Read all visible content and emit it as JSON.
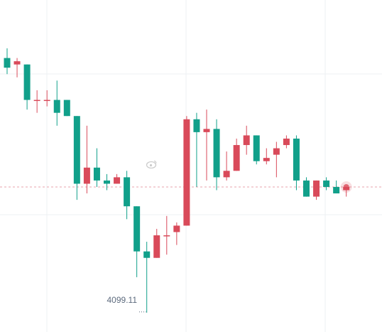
{
  "chart_data": {
    "type": "candlestick",
    "min_label": "4099.11",
    "last_price_marker": true,
    "colors": {
      "up": "#d94a5a",
      "down": "#11a08a",
      "grid": "#eef0f3",
      "price_line": "#e8a3ad",
      "label": "#5d6b7e"
    },
    "ylim": [
      4093,
      4196
    ],
    "candles": [
      {
        "o": 4178,
        "h": 4181,
        "l": 4173,
        "c": 4175
      },
      {
        "o": 4176,
        "h": 4178,
        "l": 4172,
        "c": 4177
      },
      {
        "o": 4176,
        "h": 4176,
        "l": 4162,
        "c": 4165
      },
      {
        "o": 4165,
        "h": 4168,
        "l": 4161,
        "c": 4165
      },
      {
        "o": 4165,
        "h": 4168,
        "l": 4163,
        "c": 4165
      },
      {
        "o": 4165,
        "h": 4171,
        "l": 4157,
        "c": 4161
      },
      {
        "o": 4165,
        "h": 4165,
        "l": 4160,
        "c": 4160
      },
      {
        "o": 4160,
        "h": 4160,
        "l": 4134,
        "c": 4139
      },
      {
        "o": 4139,
        "h": 4157,
        "l": 4136,
        "c": 4144
      },
      {
        "o": 4144,
        "h": 4150,
        "l": 4138,
        "c": 4140
      },
      {
        "o": 4140,
        "h": 4142,
        "l": 4137,
        "c": 4139
      },
      {
        "o": 4139,
        "h": 4142,
        "l": 4139,
        "c": 4141
      },
      {
        "o": 4141,
        "h": 4143,
        "l": 4128,
        "c": 4132
      },
      {
        "o": 4132,
        "h": 4132,
        "l": 4110,
        "c": 4118
      },
      {
        "o": 4118,
        "h": 4121,
        "l": 4099,
        "c": 4116
      },
      {
        "o": 4116,
        "h": 4125,
        "l": 4116,
        "c": 4123
      },
      {
        "o": 4123,
        "h": 4129,
        "l": 4117,
        "c": 4123
      },
      {
        "o": 4124,
        "h": 4127,
        "l": 4120,
        "c": 4126
      },
      {
        "o": 4126,
        "h": 4160,
        "l": 4126,
        "c": 4159
      },
      {
        "o": 4159,
        "h": 4161,
        "l": 4138,
        "c": 4155
      },
      {
        "o": 4155,
        "h": 4162,
        "l": 4140,
        "c": 4156
      },
      {
        "o": 4156,
        "h": 4159,
        "l": 4137,
        "c": 4141
      },
      {
        "o": 4141,
        "h": 4149,
        "l": 4140,
        "c": 4143
      },
      {
        "o": 4143,
        "h": 4153,
        "l": 4143,
        "c": 4151
      },
      {
        "o": 4151,
        "h": 4157,
        "l": 4148,
        "c": 4154
      },
      {
        "o": 4154,
        "h": 4154,
        "l": 4145,
        "c": 4146
      },
      {
        "o": 4146,
        "h": 4150,
        "l": 4145,
        "c": 4147
      },
      {
        "o": 4148,
        "h": 4152,
        "l": 4141,
        "c": 4150
      },
      {
        "o": 4151,
        "h": 4154,
        "l": 4150,
        "c": 4153
      },
      {
        "o": 4153,
        "h": 4154,
        "l": 4137,
        "c": 4140
      },
      {
        "o": 4140,
        "h": 4141,
        "l": 4135,
        "c": 4135
      },
      {
        "o": 4135,
        "h": 4140,
        "l": 4134,
        "c": 4140
      },
      {
        "o": 4140,
        "h": 4141,
        "l": 4137,
        "c": 4138
      },
      {
        "o": 4138,
        "h": 4140,
        "l": 4136,
        "c": 4136
      },
      {
        "o": 4137,
        "h": 4138,
        "l": 4135,
        "c": 4138
      }
    ]
  }
}
